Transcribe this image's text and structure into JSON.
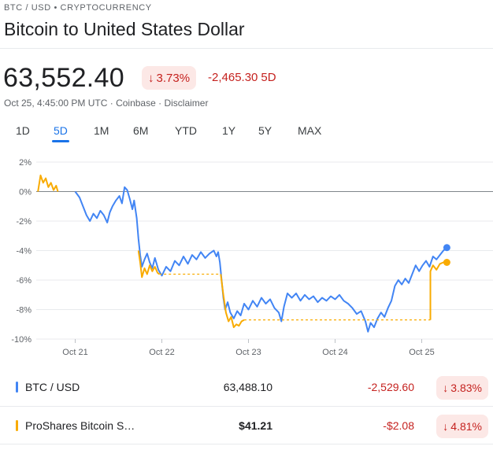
{
  "header": {
    "breadcrumb": "BTC / USD • CRYPTOCURRENCY",
    "title": "Bitcoin to United States Dollar"
  },
  "quote": {
    "price": "63,552.40",
    "pct_change": "3.73%",
    "abs_change": "-2,465.30",
    "period": "5D",
    "timestamp": "Oct 25, 4:45:00 PM UTC",
    "source": "Coinbase",
    "disclaimer": "Disclaimer",
    "separator": "·",
    "change_color": "#c5221f",
    "down_arrow_icon": "arrow-down-icon"
  },
  "tabs": [
    {
      "label": "1D"
    },
    {
      "label": "5D",
      "active": true
    },
    {
      "label": "1M"
    },
    {
      "label": "6M"
    },
    {
      "label": "YTD"
    },
    {
      "label": "1Y"
    },
    {
      "label": "5Y"
    },
    {
      "label": "MAX"
    }
  ],
  "chart_data": {
    "type": "line",
    "ylim": [
      -10,
      2
    ],
    "xlim": [
      0,
      5
    ],
    "y_ticks": [
      "2%",
      "0%",
      "-2%",
      "-4%",
      "-6%",
      "-8%",
      "-10%"
    ],
    "x_ticks": [
      "Oct 21",
      "Oct 22",
      "Oct 23",
      "Oct 24",
      "Oct 25"
    ],
    "x_tick_positions": [
      0.45,
      1.45,
      2.45,
      3.45,
      4.45
    ],
    "baseline": 0,
    "series": [
      {
        "name": "BTC / USD",
        "color": "#4285f4",
        "points": [
          [
            0.45,
            0.0
          ],
          [
            0.5,
            -0.4
          ],
          [
            0.54,
            -1.0
          ],
          [
            0.58,
            -1.6
          ],
          [
            0.62,
            -2.0
          ],
          [
            0.66,
            -1.5
          ],
          [
            0.7,
            -1.8
          ],
          [
            0.74,
            -1.3
          ],
          [
            0.78,
            -1.6
          ],
          [
            0.82,
            -2.1
          ],
          [
            0.85,
            -1.4
          ],
          [
            0.88,
            -1.0
          ],
          [
            0.92,
            -0.6
          ],
          [
            0.96,
            -0.3
          ],
          [
            0.99,
            -0.8
          ],
          [
            1.02,
            0.3
          ],
          [
            1.05,
            0.1
          ],
          [
            1.08,
            -0.5
          ],
          [
            1.11,
            -1.2
          ],
          [
            1.13,
            -0.6
          ],
          [
            1.16,
            -1.8
          ],
          [
            1.18,
            -3.2
          ],
          [
            1.2,
            -4.3
          ],
          [
            1.22,
            -5.1
          ],
          [
            1.25,
            -4.6
          ],
          [
            1.28,
            -4.2
          ],
          [
            1.31,
            -4.8
          ],
          [
            1.34,
            -5.2
          ],
          [
            1.37,
            -4.5
          ],
          [
            1.41,
            -5.3
          ],
          [
            1.45,
            -5.7
          ],
          [
            1.5,
            -5.1
          ],
          [
            1.55,
            -5.4
          ],
          [
            1.6,
            -4.7
          ],
          [
            1.65,
            -5.0
          ],
          [
            1.7,
            -4.4
          ],
          [
            1.75,
            -4.9
          ],
          [
            1.8,
            -4.3
          ],
          [
            1.85,
            -4.6
          ],
          [
            1.9,
            -4.1
          ],
          [
            1.95,
            -4.5
          ],
          [
            2.0,
            -4.2
          ],
          [
            2.05,
            -4.0
          ],
          [
            2.08,
            -4.4
          ],
          [
            2.1,
            -4.1
          ],
          [
            2.12,
            -4.8
          ],
          [
            2.14,
            -6.0
          ],
          [
            2.16,
            -7.2
          ],
          [
            2.18,
            -8.0
          ],
          [
            2.21,
            -7.5
          ],
          [
            2.24,
            -8.2
          ],
          [
            2.28,
            -8.6
          ],
          [
            2.32,
            -8.1
          ],
          [
            2.36,
            -8.4
          ],
          [
            2.4,
            -7.6
          ],
          [
            2.45,
            -8.0
          ],
          [
            2.5,
            -7.4
          ],
          [
            2.55,
            -7.8
          ],
          [
            2.6,
            -7.2
          ],
          [
            2.65,
            -7.6
          ],
          [
            2.7,
            -7.3
          ],
          [
            2.75,
            -7.9
          ],
          [
            2.8,
            -8.2
          ],
          [
            2.83,
            -8.8
          ],
          [
            2.86,
            -7.8
          ],
          [
            2.9,
            -6.9
          ],
          [
            2.95,
            -7.2
          ],
          [
            3.0,
            -6.9
          ],
          [
            3.05,
            -7.4
          ],
          [
            3.1,
            -7.0
          ],
          [
            3.15,
            -7.3
          ],
          [
            3.2,
            -7.1
          ],
          [
            3.25,
            -7.5
          ],
          [
            3.3,
            -7.2
          ],
          [
            3.35,
            -7.4
          ],
          [
            3.4,
            -7.1
          ],
          [
            3.45,
            -7.3
          ],
          [
            3.5,
            -7.0
          ],
          [
            3.55,
            -7.4
          ],
          [
            3.6,
            -7.6
          ],
          [
            3.65,
            -7.9
          ],
          [
            3.7,
            -8.3
          ],
          [
            3.75,
            -8.1
          ],
          [
            3.8,
            -8.8
          ],
          [
            3.83,
            -9.5
          ],
          [
            3.86,
            -8.9
          ],
          [
            3.9,
            -9.2
          ],
          [
            3.94,
            -8.6
          ],
          [
            3.98,
            -8.2
          ],
          [
            4.02,
            -8.5
          ],
          [
            4.06,
            -7.9
          ],
          [
            4.1,
            -7.4
          ],
          [
            4.14,
            -6.4
          ],
          [
            4.18,
            -6.0
          ],
          [
            4.22,
            -6.3
          ],
          [
            4.26,
            -5.9
          ],
          [
            4.3,
            -6.2
          ],
          [
            4.34,
            -5.6
          ],
          [
            4.38,
            -5.0
          ],
          [
            4.42,
            -5.4
          ],
          [
            4.46,
            -5.0
          ],
          [
            4.5,
            -4.7
          ],
          [
            4.54,
            -5.1
          ],
          [
            4.58,
            -4.4
          ],
          [
            4.62,
            -4.6
          ],
          [
            4.66,
            -4.3
          ],
          [
            4.7,
            -4.0
          ],
          [
            4.74,
            -3.8
          ]
        ]
      },
      {
        "name": "ProShares Bitcoin S…",
        "color": "#f9ab00",
        "points": [
          [
            0.02,
            0.0
          ],
          [
            0.05,
            1.1
          ],
          [
            0.08,
            0.6
          ],
          [
            0.11,
            0.9
          ],
          [
            0.14,
            0.3
          ],
          [
            0.17,
            0.6
          ],
          [
            0.2,
            0.1
          ],
          [
            0.23,
            0.4
          ],
          [
            0.25,
            0.0
          ],
          [
            1.18,
            -4.0
          ],
          [
            1.2,
            -4.8
          ],
          [
            1.22,
            -5.8
          ],
          [
            1.25,
            -5.2
          ],
          [
            1.28,
            -5.6
          ],
          [
            1.31,
            -5.0
          ],
          [
            1.34,
            -5.4
          ],
          [
            1.37,
            -5.1
          ],
          [
            1.4,
            -5.5
          ],
          [
            1.42,
            -5.6
          ],
          [
            2.13,
            -5.6
          ],
          [
            2.16,
            -7.0
          ],
          [
            2.19,
            -8.2
          ],
          [
            2.22,
            -8.8
          ],
          [
            2.25,
            -8.5
          ],
          [
            2.28,
            -9.2
          ],
          [
            2.31,
            -9.0
          ],
          [
            2.34,
            -9.1
          ],
          [
            2.37,
            -8.8
          ],
          [
            2.4,
            -8.7
          ],
          [
            4.55,
            -8.7
          ],
          [
            4.55,
            -5.4
          ],
          [
            4.58,
            -5.0
          ],
          [
            4.62,
            -5.3
          ],
          [
            4.66,
            -4.9
          ],
          [
            4.7,
            -4.8
          ],
          [
            4.74,
            -4.8
          ]
        ],
        "gaps": [
          [
            [
              1.42,
              -5.6
            ],
            [
              2.13,
              -5.6
            ]
          ],
          [
            [
              2.4,
              -8.7
            ],
            [
              4.55,
              -8.7
            ]
          ],
          [
            [
              0.25,
              0.0
            ],
            [
              1.18,
              -4.0
            ]
          ]
        ]
      }
    ]
  },
  "legend": [
    {
      "name": "BTC / USD",
      "color": "#4285f4",
      "value": "63,488.10",
      "change": "-2,529.60",
      "pct": "3.83%"
    },
    {
      "name": "ProShares Bitcoin S…",
      "color": "#f9ab00",
      "value": "$41.21",
      "change": "-$2.08",
      "pct": "4.81%"
    }
  ]
}
